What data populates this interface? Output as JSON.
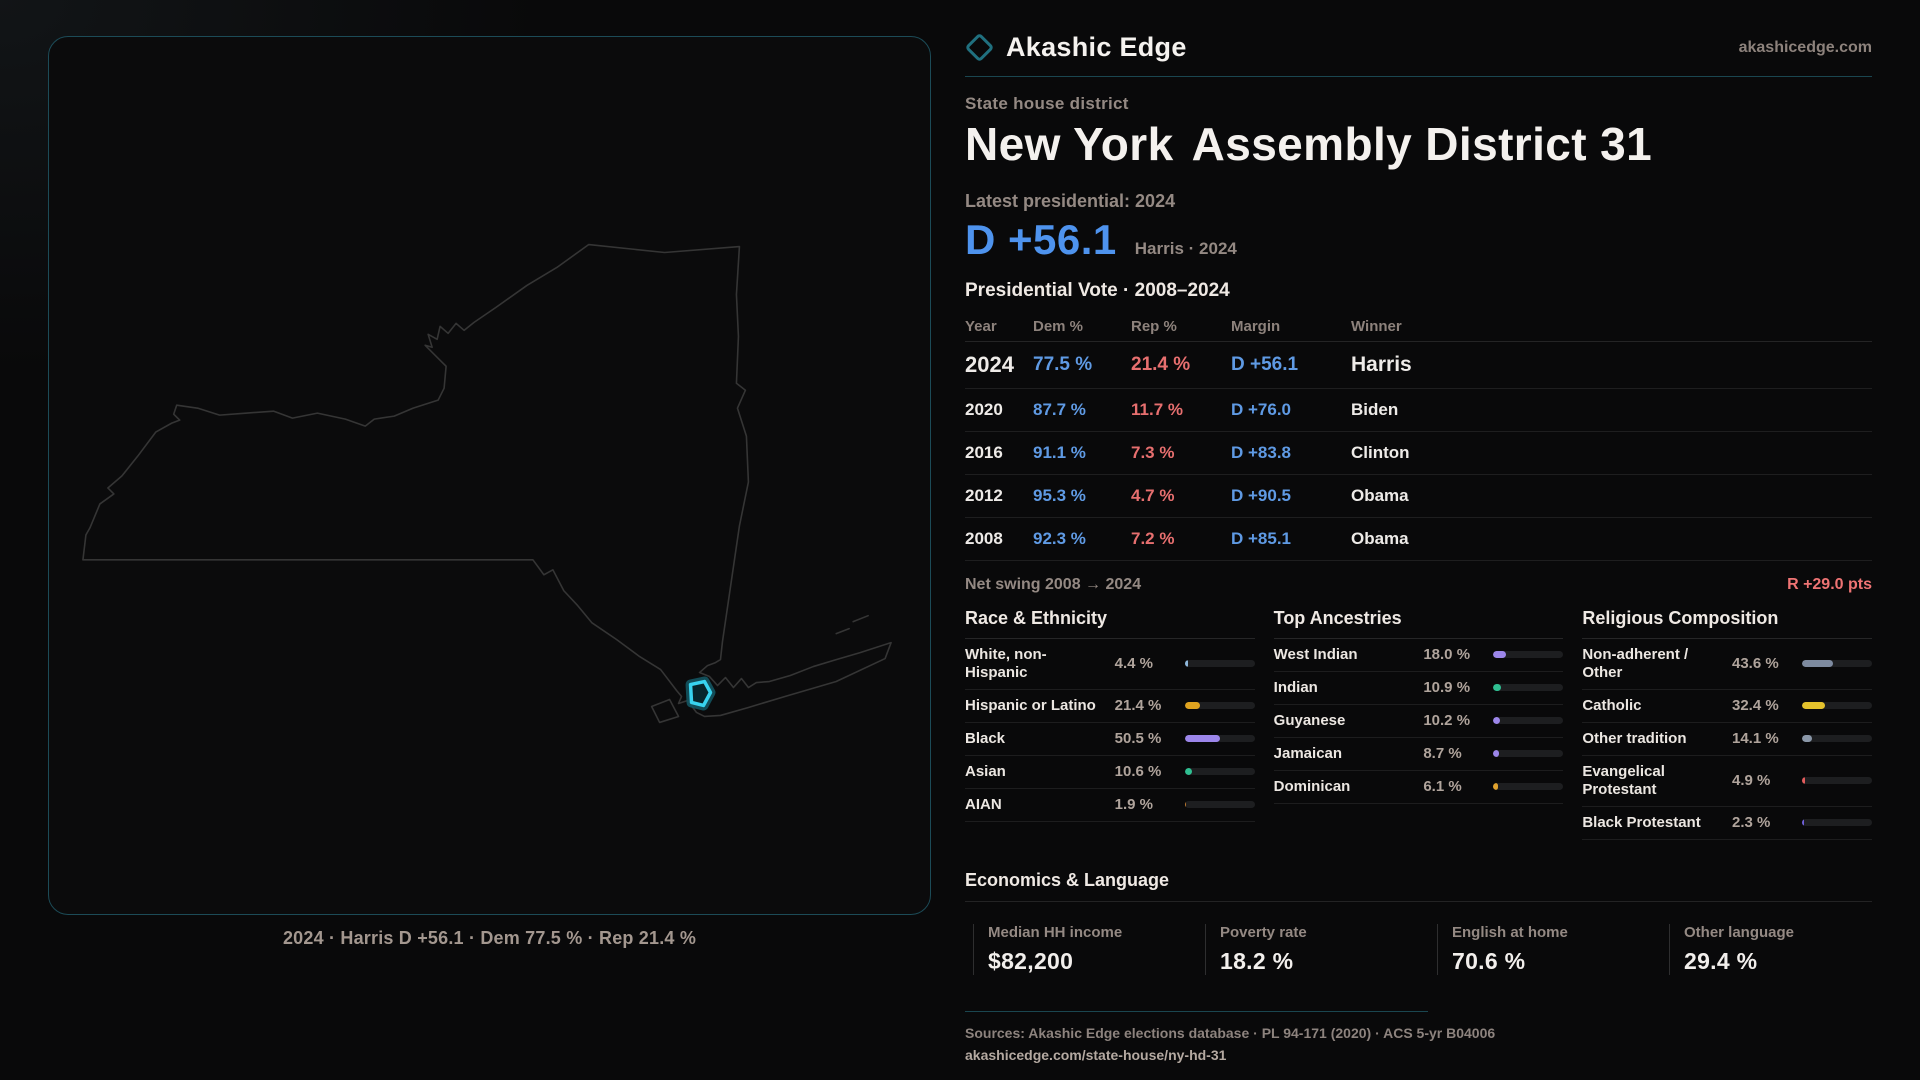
{
  "brand": {
    "name": "Akashic Edge",
    "site": "akashicedge.com",
    "footer_url": "akashicedge.com/state-house/ny-hd-31"
  },
  "icons": {
    "brand": "diamond-outline"
  },
  "colors": {
    "accent_teal": "#1c4b57",
    "dem_blue": "#5f9ae4",
    "big_margin_blue": "#4e93ee",
    "rep_red": "#e76f6f",
    "swing_red": "#ef7474",
    "district_marker_cyan": "#38d3ef",
    "map_outline": "#353535"
  },
  "header": {
    "kicker": "State house district",
    "title_state": "New York",
    "title_seat": "Assembly District 31"
  },
  "latest": {
    "label": "Latest presidential: 2024",
    "margin": "D +56.1",
    "detail": "Harris · 2024"
  },
  "map": {
    "caption": "2024 · Harris D +56.1 · Dem 77.5 % · Rep 21.4 %"
  },
  "vote_table": {
    "title": "Presidential Vote · 2008–2024",
    "columns": [
      "Year",
      "Dem %",
      "Rep %",
      "Margin",
      "Winner"
    ],
    "rows": [
      {
        "year": "2024",
        "dem": "77.5 %",
        "rep": "21.4 %",
        "margin": "D +56.1",
        "winner": "Harris"
      },
      {
        "year": "2020",
        "dem": "87.7 %",
        "rep": "11.7 %",
        "margin": "D +76.0",
        "winner": "Biden"
      },
      {
        "year": "2016",
        "dem": "91.1 %",
        "rep": "7.3 %",
        "margin": "D +83.8",
        "winner": "Clinton"
      },
      {
        "year": "2012",
        "dem": "95.3 %",
        "rep": "4.7 %",
        "margin": "D +90.5",
        "winner": "Obama"
      },
      {
        "year": "2008",
        "dem": "92.3 %",
        "rep": "7.2 %",
        "margin": "D +85.1",
        "winner": "Obama"
      }
    ]
  },
  "net_swing": {
    "label": "Net swing 2008 → 2024",
    "value": "R +29.0 pts"
  },
  "demographics": {
    "groups": [
      {
        "id": "race",
        "title": "Race & Ethnicity",
        "rows": [
          {
            "label": "White, non-Hispanic",
            "value": "4.4 %",
            "pct": 4.4,
            "color": "#8fb8dc"
          },
          {
            "label": "Hispanic or Latino",
            "value": "21.4 %",
            "pct": 21.4,
            "color": "#dfa31f"
          },
          {
            "label": "Black",
            "value": "50.5 %",
            "pct": 50.5,
            "color": "#9c86ea"
          },
          {
            "label": "Asian",
            "value": "10.6 %",
            "pct": 10.6,
            "color": "#2fbf91"
          },
          {
            "label": "AIAN",
            "value": "1.9 %",
            "pct": 1.9,
            "color": "#c07a2e"
          }
        ]
      },
      {
        "id": "ancestry",
        "title": "Top Ancestries",
        "rows": [
          {
            "label": "West Indian",
            "value": "18.0 %",
            "pct": 18.0,
            "color": "#9c86ea"
          },
          {
            "label": "Indian",
            "value": "10.9 %",
            "pct": 10.9,
            "color": "#2fbf91"
          },
          {
            "label": "Guyanese",
            "value": "10.2 %",
            "pct": 10.2,
            "color": "#9c86ea"
          },
          {
            "label": "Jamaican",
            "value": "8.7 %",
            "pct": 8.7,
            "color": "#9c86ea"
          },
          {
            "label": "Dominican",
            "value": "6.1 %",
            "pct": 6.1,
            "color": "#e0a22e"
          }
        ]
      },
      {
        "id": "religion",
        "title": "Religious Composition",
        "rows": [
          {
            "label": "Non-adherent / Other",
            "value": "43.6 %",
            "pct": 43.6,
            "color": "#7e8ba0"
          },
          {
            "label": "Catholic",
            "value": "32.4 %",
            "pct": 32.4,
            "color": "#e4c22c"
          },
          {
            "label": "Other tradition",
            "value": "14.1 %",
            "pct": 14.1,
            "color": "#8a97a8"
          },
          {
            "label": "Evangelical Protestant",
            "value": "4.9 %",
            "pct": 4.9,
            "color": "#e25c5c"
          },
          {
            "label": "Black Protestant",
            "value": "2.3 %",
            "pct": 2.3,
            "color": "#6f5fd8"
          }
        ]
      }
    ]
  },
  "economics": {
    "title": "Economics & Language",
    "stats": [
      {
        "label": "Median HH income",
        "value": "$82,200"
      },
      {
        "label": "Poverty rate",
        "value": "18.2 %"
      },
      {
        "label": "English at home",
        "value": "70.6 %"
      },
      {
        "label": "Other language",
        "value": "29.4 %"
      }
    ]
  },
  "sources": {
    "line": "Sources: Akashic Edge elections database · PL 94-171 (2020) · ACS 5-yr B04006"
  },
  "chart_data": [
    {
      "type": "table",
      "title": "Presidential Vote · 2008–2024",
      "columns": [
        "Year",
        "Dem %",
        "Rep %",
        "Margin",
        "Winner"
      ],
      "rows": [
        [
          2024,
          77.5,
          21.4,
          "D +56.1",
          "Harris"
        ],
        [
          2020,
          87.7,
          11.7,
          "D +76.0",
          "Biden"
        ],
        [
          2016,
          91.1,
          7.3,
          "D +83.8",
          "Clinton"
        ],
        [
          2012,
          95.3,
          4.7,
          "D +90.5",
          "Obama"
        ],
        [
          2008,
          92.3,
          7.2,
          "D +85.1",
          "Obama"
        ]
      ]
    },
    {
      "type": "bar",
      "title": "Race & Ethnicity",
      "categories": [
        "White, non-Hispanic",
        "Hispanic or Latino",
        "Black",
        "Asian",
        "AIAN"
      ],
      "values": [
        4.4,
        21.4,
        50.5,
        10.6,
        1.9
      ],
      "xlim": [
        0,
        100
      ]
    },
    {
      "type": "bar",
      "title": "Top Ancestries",
      "categories": [
        "West Indian",
        "Indian",
        "Guyanese",
        "Jamaican",
        "Dominican"
      ],
      "values": [
        18.0,
        10.9,
        10.2,
        8.7,
        6.1
      ],
      "xlim": [
        0,
        100
      ]
    },
    {
      "type": "bar",
      "title": "Religious Composition",
      "categories": [
        "Non-adherent / Other",
        "Catholic",
        "Other tradition",
        "Evangelical Protestant",
        "Black Protestant"
      ],
      "values": [
        43.6,
        32.4,
        14.1,
        4.9,
        2.3
      ],
      "xlim": [
        0,
        100
      ]
    },
    {
      "type": "bar",
      "title": "Economics & Language",
      "categories": [
        "Median HH income",
        "Poverty rate",
        "English at home",
        "Other language"
      ],
      "values": [
        82200,
        18.2,
        70.6,
        29.4
      ]
    }
  ]
}
